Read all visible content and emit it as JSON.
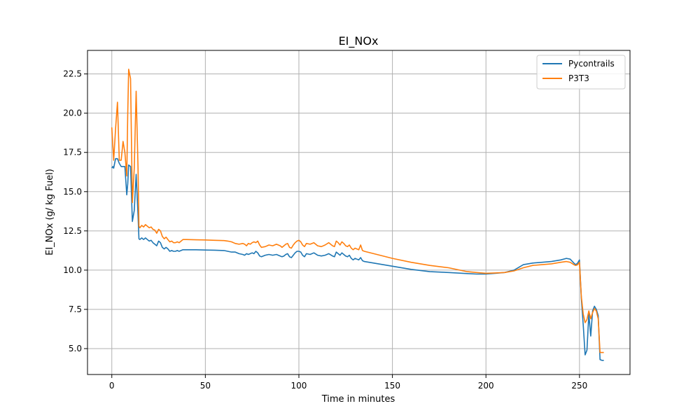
{
  "chart_data": {
    "type": "line",
    "title": "EI_NOx",
    "xlabel": "Time in minutes",
    "ylabel": "EI_NOx (g/ kg Fuel)",
    "xlim": [
      -13,
      277
    ],
    "ylim": [
      3.35,
      24.0
    ],
    "xticks": [
      0,
      50,
      100,
      150,
      200,
      250
    ],
    "yticks": [
      5.0,
      7.5,
      10.0,
      12.5,
      15.0,
      17.5,
      20.0,
      22.5
    ],
    "xtick_labels": [
      "0",
      "50",
      "100",
      "150",
      "200",
      "250"
    ],
    "ytick_labels": [
      "5.0",
      "7.5",
      "10.0",
      "12.5",
      "15.0",
      "17.5",
      "20.0",
      "22.5"
    ],
    "grid": true,
    "legend_position": "top-right",
    "series": [
      {
        "name": "Pycontrails",
        "color": "#1f77b4",
        "x": [
          0,
          0.5,
          1,
          2,
          3,
          4,
          5,
          6,
          7,
          8,
          8.5,
          9,
          10,
          11,
          12,
          13,
          14,
          14.5,
          15,
          16,
          17,
          18,
          19,
          20,
          21,
          22,
          23,
          24,
          25,
          26,
          27,
          28,
          29,
          30,
          31,
          32,
          33,
          34,
          35,
          36,
          38,
          40,
          45,
          50,
          55,
          60,
          62,
          64,
          66,
          68,
          70,
          71,
          72,
          73,
          74,
          75,
          76,
          77,
          78,
          79,
          80,
          82,
          84,
          86,
          88,
          90,
          91,
          92,
          93,
          94,
          95,
          96,
          97,
          98,
          99,
          100,
          101,
          102,
          103,
          104,
          106,
          108,
          110,
          112,
          114,
          116,
          118,
          119,
          120,
          121,
          122,
          123,
          124,
          125,
          126,
          127,
          128,
          129,
          130,
          131,
          132,
          133,
          134,
          135,
          140,
          150,
          160,
          170,
          180,
          190,
          195,
          200,
          205,
          210,
          215,
          220,
          225,
          230,
          235,
          240,
          243,
          245,
          247,
          248,
          249,
          250,
          251,
          252,
          253,
          254,
          255,
          256,
          257,
          258,
          259,
          260,
          261,
          262,
          263
        ],
        "y": [
          16.5,
          16.6,
          16.5,
          17.1,
          17.1,
          16.8,
          16.6,
          16.6,
          16.6,
          14.8,
          15.5,
          16.7,
          16.6,
          13.1,
          13.8,
          16.1,
          13.5,
          12.0,
          11.95,
          12.05,
          11.95,
          12.05,
          11.95,
          11.85,
          11.9,
          11.75,
          11.65,
          11.55,
          11.85,
          11.75,
          11.45,
          11.35,
          11.45,
          11.35,
          11.2,
          11.25,
          11.2,
          11.2,
          11.25,
          11.2,
          11.3,
          11.3,
          11.3,
          11.28,
          11.27,
          11.25,
          11.2,
          11.15,
          11.15,
          11.05,
          11.0,
          10.95,
          11.05,
          11.0,
          11.05,
          11.1,
          11.05,
          11.2,
          11.1,
          10.9,
          10.85,
          10.95,
          11.0,
          10.95,
          11.0,
          10.9,
          10.85,
          10.9,
          11.0,
          11.05,
          10.85,
          10.8,
          10.95,
          11.1,
          11.2,
          11.2,
          11.15,
          10.95,
          10.85,
          11.05,
          11.0,
          11.1,
          10.95,
          10.9,
          10.95,
          11.05,
          10.9,
          10.85,
          11.15,
          11.05,
          10.95,
          11.1,
          11.0,
          10.9,
          10.85,
          10.95,
          10.75,
          10.65,
          10.75,
          10.7,
          10.65,
          10.8,
          10.6,
          10.55,
          10.45,
          10.25,
          10.05,
          9.9,
          9.85,
          9.78,
          9.75,
          9.75,
          9.8,
          9.85,
          10.0,
          10.35,
          10.45,
          10.5,
          10.55,
          10.65,
          10.75,
          10.7,
          10.45,
          10.35,
          10.45,
          10.65,
          8.2,
          6.5,
          4.6,
          4.9,
          7.2,
          5.8,
          7.4,
          7.7,
          7.5,
          7.1,
          4.3,
          4.25,
          4.25
        ]
      },
      {
        "name": "P3T3",
        "color": "#ff7f0e",
        "x": [
          0,
          0.5,
          1,
          2,
          3,
          4,
          5,
          6,
          7,
          8,
          8.5,
          9,
          10,
          11,
          12,
          13,
          14,
          14.5,
          15,
          16,
          17,
          18,
          19,
          20,
          21,
          22,
          23,
          24,
          25,
          26,
          27,
          28,
          29,
          30,
          31,
          32,
          33,
          34,
          35,
          36,
          38,
          40,
          45,
          50,
          55,
          60,
          62,
          64,
          66,
          68,
          70,
          71,
          72,
          73,
          74,
          75,
          76,
          77,
          78,
          79,
          80,
          82,
          84,
          86,
          88,
          90,
          91,
          92,
          93,
          94,
          95,
          96,
          97,
          98,
          99,
          100,
          101,
          102,
          103,
          104,
          106,
          108,
          110,
          112,
          114,
          116,
          118,
          119,
          120,
          121,
          122,
          123,
          124,
          125,
          126,
          127,
          128,
          129,
          130,
          131,
          132,
          133,
          134,
          135,
          140,
          150,
          160,
          170,
          180,
          190,
          195,
          200,
          205,
          210,
          215,
          220,
          225,
          230,
          235,
          240,
          243,
          245,
          247,
          248,
          249,
          250,
          251,
          252,
          253,
          254,
          255,
          256,
          257,
          258,
          259,
          260,
          261,
          262,
          263
        ],
        "y": [
          19.1,
          18.0,
          17.0,
          19.0,
          20.7,
          17.0,
          17.0,
          18.2,
          17.5,
          16.0,
          20.0,
          22.8,
          22.2,
          14.3,
          16.5,
          21.4,
          16.5,
          12.8,
          12.7,
          12.85,
          12.75,
          12.9,
          12.8,
          12.7,
          12.75,
          12.6,
          12.55,
          12.35,
          12.6,
          12.5,
          12.15,
          12.0,
          12.1,
          11.95,
          11.8,
          11.85,
          11.75,
          11.75,
          11.8,
          11.75,
          11.95,
          11.95,
          11.93,
          11.92,
          11.9,
          11.88,
          11.85,
          11.8,
          11.7,
          11.65,
          11.7,
          11.65,
          11.55,
          11.7,
          11.65,
          11.75,
          11.8,
          11.75,
          11.85,
          11.6,
          11.45,
          11.5,
          11.6,
          11.55,
          11.65,
          11.55,
          11.45,
          11.55,
          11.65,
          11.7,
          11.45,
          11.4,
          11.6,
          11.75,
          11.85,
          11.9,
          11.8,
          11.6,
          11.5,
          11.7,
          11.65,
          11.75,
          11.55,
          11.5,
          11.6,
          11.75,
          11.55,
          11.5,
          11.85,
          11.75,
          11.6,
          11.8,
          11.7,
          11.55,
          11.5,
          11.6,
          11.4,
          11.3,
          11.4,
          11.35,
          11.3,
          11.6,
          11.25,
          11.2,
          11.05,
          10.75,
          10.5,
          10.3,
          10.15,
          9.9,
          9.85,
          9.8,
          9.82,
          9.85,
          9.95,
          10.15,
          10.3,
          10.35,
          10.4,
          10.5,
          10.55,
          10.5,
          10.35,
          10.3,
          10.35,
          10.5,
          8.3,
          7.2,
          6.65,
          6.85,
          7.4,
          6.9,
          7.3,
          7.55,
          7.4,
          6.9,
          4.75,
          4.75,
          4.75
        ]
      }
    ]
  }
}
